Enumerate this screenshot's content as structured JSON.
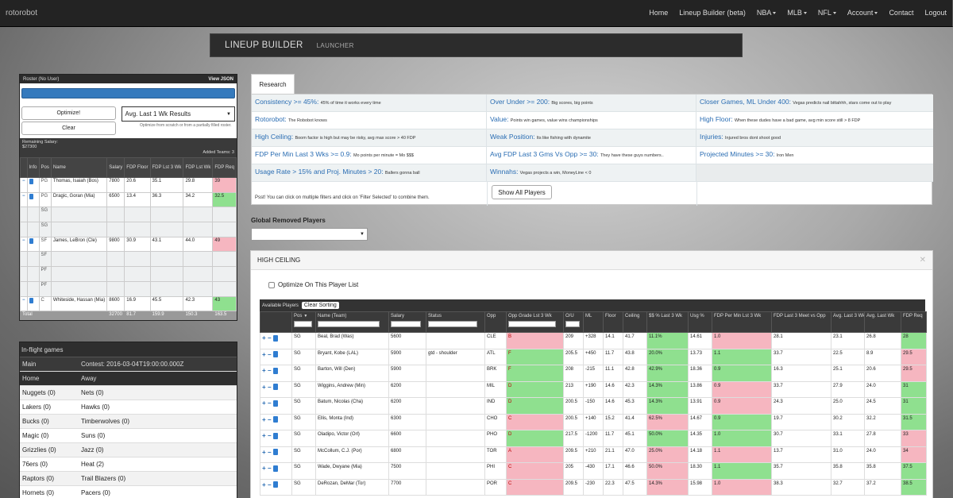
{
  "nav": {
    "brand": "rotorobot",
    "links": [
      {
        "label": "Home",
        "dd": false
      },
      {
        "label": "Lineup Builder (beta)",
        "dd": false
      },
      {
        "label": "NBA",
        "dd": true
      },
      {
        "label": "MLB",
        "dd": true
      },
      {
        "label": "NFL",
        "dd": true
      },
      {
        "label": "Account",
        "dd": true
      },
      {
        "label": "Contact",
        "dd": false
      },
      {
        "label": "Logout",
        "dd": false
      }
    ]
  },
  "subnav": {
    "title": "LINEUP BUILDER",
    "launcher": "LAUNCHER"
  },
  "roster": {
    "title": "Roster (No User)",
    "view_json": "View JSON",
    "optimize": "Optimize!",
    "clear": "Clear",
    "select": "Avg. Last 1 Wk Results",
    "hint": "Optimize from scratch or from a partially filled roster.",
    "remaining_label": "Remaining Salary:",
    "remaining_value": "$27300",
    "added": "Added Teams: 3",
    "headers": [
      "",
      "Info",
      "Pos",
      "Name",
      "Salary",
      "FDP Floor",
      "FDP Lst 3 Wk",
      "FDP Lst Wk",
      "FDP Req"
    ],
    "rows": [
      {
        "filled": true,
        "pos": "PG",
        "name": "Thomas, Isaiah (Bos)",
        "salary": "7800",
        "floor": "20.6",
        "l3": "35.1",
        "lw": "29.8",
        "req": "39",
        "req_c": "red"
      },
      {
        "filled": true,
        "pos": "PG",
        "name": "Dragic, Goran (Mia)",
        "salary": "6500",
        "floor": "13.4",
        "l3": "36.3",
        "lw": "34.2",
        "req": "32.5",
        "req_c": "green"
      },
      {
        "filled": false,
        "pos": "SG"
      },
      {
        "filled": false,
        "pos": "SG"
      },
      {
        "filled": true,
        "pos": "SF",
        "name": "James, LeBron (Cle)",
        "salary": "9800",
        "floor": "30.9",
        "l3": "43.1",
        "lw": "44.0",
        "req": "49",
        "req_c": "red"
      },
      {
        "filled": false,
        "pos": "SF"
      },
      {
        "filled": false,
        "pos": "PF"
      },
      {
        "filled": false,
        "pos": "PF"
      },
      {
        "filled": true,
        "pos": "C",
        "name": "Whiteside, Hassan (Mia)",
        "salary": "8600",
        "floor": "16.9",
        "l3": "45.5",
        "lw": "42.3",
        "req": "43",
        "req_c": "green"
      }
    ],
    "total": {
      "label": "Total",
      "salary": "32700",
      "floor": "81.7",
      "l3": "159.9",
      "lw": "150.3",
      "req": "163.5"
    }
  },
  "inflight": {
    "title": "In-flight games",
    "main": "Main",
    "contest": "Contest: 2016-03-04T19:00:00.000Z",
    "home": "Home",
    "away": "Away",
    "games": [
      [
        "Nuggets (0)",
        "Nets (0)"
      ],
      [
        "Lakers (0)",
        "Hawks (0)"
      ],
      [
        "Bucks (0)",
        "Timberwolves (0)"
      ],
      [
        "Magic (0)",
        "Suns (0)"
      ],
      [
        "Grizzlies (0)",
        "Jazz (0)"
      ],
      [
        "76ers (0)",
        "Heat (2)"
      ],
      [
        "Raptors (0)",
        "Trail Blazers (0)"
      ],
      [
        "Hornets (0)",
        "Pacers (0)"
      ]
    ]
  },
  "research": {
    "tab": "Research",
    "psst": "Psst! You can click on multiple filters and click on 'Filter Selected' to combine them.",
    "show_all": "Show All Players",
    "col1": [
      {
        "t": "Consistency >= 45%:",
        "d": "45% of time it works every time"
      },
      {
        "t": "Rotorobot:",
        "d": "The Robobot knows"
      },
      {
        "t": "High Ceiling:",
        "d": "Boom factor is high but may be risky, avg max score > 40 FDP"
      },
      {
        "t": "FDP Per Min Last 3 Wks >= 0.9:",
        "d": "Mo points per minute = Mo $$$"
      },
      {
        "t": "Usage Rate > 15% and Proj. Minutes > 20:",
        "d": "Ballers gonna ball"
      }
    ],
    "col2": [
      {
        "t": "Over Under >= 200:",
        "d": "Big scores, big points"
      },
      {
        "t": "Value:",
        "d": "Points win games, value wins championships"
      },
      {
        "t": "Weak Position:",
        "d": "Its like fishing with dynamite"
      },
      {
        "t": "Avg FDP Last 3 Gms Vs Opp >= 30:",
        "d": "They have these guys numbers.."
      },
      {
        "t": "Winnahs:",
        "d": "Vegas projects a win, MoneyLine < 0"
      }
    ],
    "col3": [
      {
        "t": "Closer Games, ML Under 400:",
        "d": "Vegas predicts nail bittahhh, stars come out to play"
      },
      {
        "t": "High Floor:",
        "d": "When these dudes have a bad game, avg min score still > 8 FDP"
      },
      {
        "t": "Injuries:",
        "d": "Injured bros dont shoot good"
      },
      {
        "t": "Projected Minutes >= 30:",
        "d": "Iron Men"
      }
    ]
  },
  "removed": {
    "label": "Global Removed Players"
  },
  "hc": {
    "title": "HIGH CEILING",
    "optimize_label": "Optimize On This Player List",
    "available": "Available Players",
    "clear_sorting": "Clear Sorting",
    "headers": [
      "",
      "Pos",
      "Name (Team)",
      "Salary",
      "Status",
      "Opp",
      "Opp Grade Lst 3 Wk",
      "O/U",
      "ML",
      "Floor",
      "Ceiling",
      "$$ % Last 3 Wk",
      "Usg %",
      "FDP Per Min Lst 3 Wk",
      "FDP Last 3 Meet vs Opp",
      "Avg. Last 3 Wk",
      "Avg. Last Wk",
      "FDP Req"
    ],
    "rows": [
      [
        "SG",
        "Beal, Brad (Was)",
        "5600",
        "",
        "CLE",
        "B",
        "209",
        "+328",
        "14.1",
        "41.7",
        "11.1%",
        "14.61",
        "1.0",
        "28.1",
        "23.1",
        "26.8",
        "28"
      ],
      [
        "SG",
        "Bryant, Kobe (LAL)",
        "5900",
        "gtd - shoulder",
        "ATL",
        "F",
        "205.5",
        "+450",
        "11.7",
        "43.8",
        "20.0%",
        "13.73",
        "1.1",
        "33.7",
        "22.5",
        "8.9",
        "29.5"
      ],
      [
        "SG",
        "Barton, Will (Den)",
        "5900",
        "",
        "BRK",
        "F",
        "208",
        "-215",
        "11.1",
        "42.8",
        "42.9%",
        "18.36",
        "0.9",
        "16.3",
        "25.1",
        "20.6",
        "29.5"
      ],
      [
        "SG",
        "Wiggins, Andrew (Min)",
        "6200",
        "",
        "MIL",
        "D",
        "213",
        "+190",
        "14.6",
        "42.3",
        "14.3%",
        "13.86",
        "0.9",
        "33.7",
        "27.9",
        "24.0",
        "31"
      ],
      [
        "SG",
        "Batum, Nicolas (Cha)",
        "6200",
        "",
        "IND",
        "D",
        "200.5",
        "-150",
        "14.6",
        "45.3",
        "14.3%",
        "13.91",
        "0.9",
        "24.3",
        "25.0",
        "24.5",
        "31"
      ],
      [
        "SG",
        "Ellis, Monta (Ind)",
        "6300",
        "",
        "CHO",
        "C",
        "200.5",
        "+140",
        "15.2",
        "41.4",
        "62.5%",
        "14.67",
        "0.9",
        "19.7",
        "30.2",
        "32.2",
        "31.5"
      ],
      [
        "SG",
        "Oladipo, Victor (Orl)",
        "6600",
        "",
        "PHO",
        "D",
        "217.5",
        "-1200",
        "11.7",
        "45.1",
        "50.0%",
        "14.35",
        "1.0",
        "30.7",
        "33.1",
        "27.8",
        "33"
      ],
      [
        "SG",
        "McCollum, C.J. (Por)",
        "6800",
        "",
        "TOR",
        "A",
        "209.5",
        "+210",
        "21.1",
        "47.0",
        "25.0%",
        "14.18",
        "1.1",
        "13.7",
        "31.0",
        "24.0",
        "34"
      ],
      [
        "SG",
        "Wade, Dwyane (Mia)",
        "7500",
        "",
        "PHI",
        "C",
        "205",
        "-430",
        "17.1",
        "46.6",
        "50.0%",
        "18.30",
        "1.1",
        "35.7",
        "35.8",
        "35.8",
        "37.5"
      ],
      [
        "SG",
        "DeRozan, DeMar (Tor)",
        "7700",
        "",
        "POR",
        "C",
        "209.5",
        "-230",
        "22.3",
        "47.5",
        "14.3%",
        "15.98",
        "1.0",
        "38.3",
        "32.7",
        "37.2",
        "38.5"
      ]
    ],
    "colors": [
      [
        "red",
        "green",
        "red",
        "red",
        "green"
      ],
      [
        "green",
        "green",
        "green",
        "green",
        "red"
      ],
      [
        "green",
        "green",
        "green",
        "red",
        "red"
      ],
      [
        "green",
        "green",
        "red",
        "red",
        "green"
      ],
      [
        "green",
        "green",
        "red",
        "red",
        "green"
      ],
      [
        "red",
        "red",
        "green",
        "red",
        "green"
      ],
      [
        "green",
        "green",
        "green",
        "green",
        "red"
      ],
      [
        "red",
        "red",
        "red",
        "green",
        "red"
      ],
      [
        "red",
        "red",
        "green",
        "green",
        "green"
      ],
      [
        "red",
        "red",
        "red",
        "green",
        "green"
      ]
    ]
  }
}
